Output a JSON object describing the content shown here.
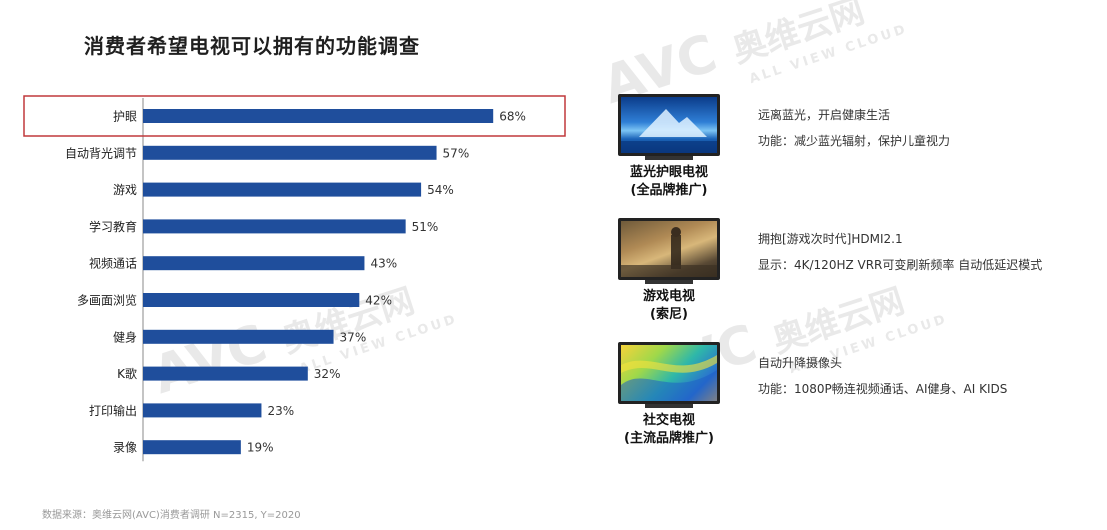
{
  "title": "消费者希望电视可以拥有的功能调查",
  "watermark": {
    "brand": "AVC",
    "cn": "奥维云网",
    "en": "ALL VIEW CLOUD"
  },
  "chart_data": {
    "type": "bar",
    "orientation": "horizontal",
    "categories": [
      "护眼",
      "自动背光调节",
      "游戏",
      "学习教育",
      "视频通话",
      "多画面浏览",
      "健身",
      "K歌",
      "打印输出",
      "录像"
    ],
    "values": [
      68,
      57,
      54,
      51,
      43,
      42,
      37,
      32,
      23,
      19
    ],
    "value_labels": [
      "68%",
      "57%",
      "54%",
      "51%",
      "43%",
      "42%",
      "37%",
      "32%",
      "23%",
      "19%"
    ],
    "unit": "%",
    "highlight_index": 0,
    "colors": {
      "bar": "#1f4e9c",
      "highlight_box": "#c0393b",
      "axis": "#888888"
    },
    "xlim": [
      0,
      100
    ],
    "grid": false
  },
  "features": [
    {
      "name_line1": "蓝光护眼电视",
      "name_line2": "(全品牌推广)",
      "desc_line1": "远离蓝光，开启健康生活",
      "desc_line2": "功能：减少蓝光辐射，保护儿童视力",
      "image": "blue-mountain-tv"
    },
    {
      "name_line1": "游戏电视",
      "name_line2": "(索尼)",
      "desc_line1": "拥抱[游戏次时代]HDMI2.1",
      "desc_line2": "显示：4K/120HZ  VRR可变刷新频率  自动低延迟模式",
      "image": "game-scene-tv"
    },
    {
      "name_line1": "社交电视",
      "name_line2": "(主流品牌推广)",
      "desc_line1": "自动升降摄像头",
      "desc_line2": "功能：1080P畅连视频通话、AI健身、AI KIDS",
      "image": "color-wave-tv"
    }
  ],
  "source": "数据来源：奥维云网(AVC)消费者调研  N=2315, Y=2020"
}
